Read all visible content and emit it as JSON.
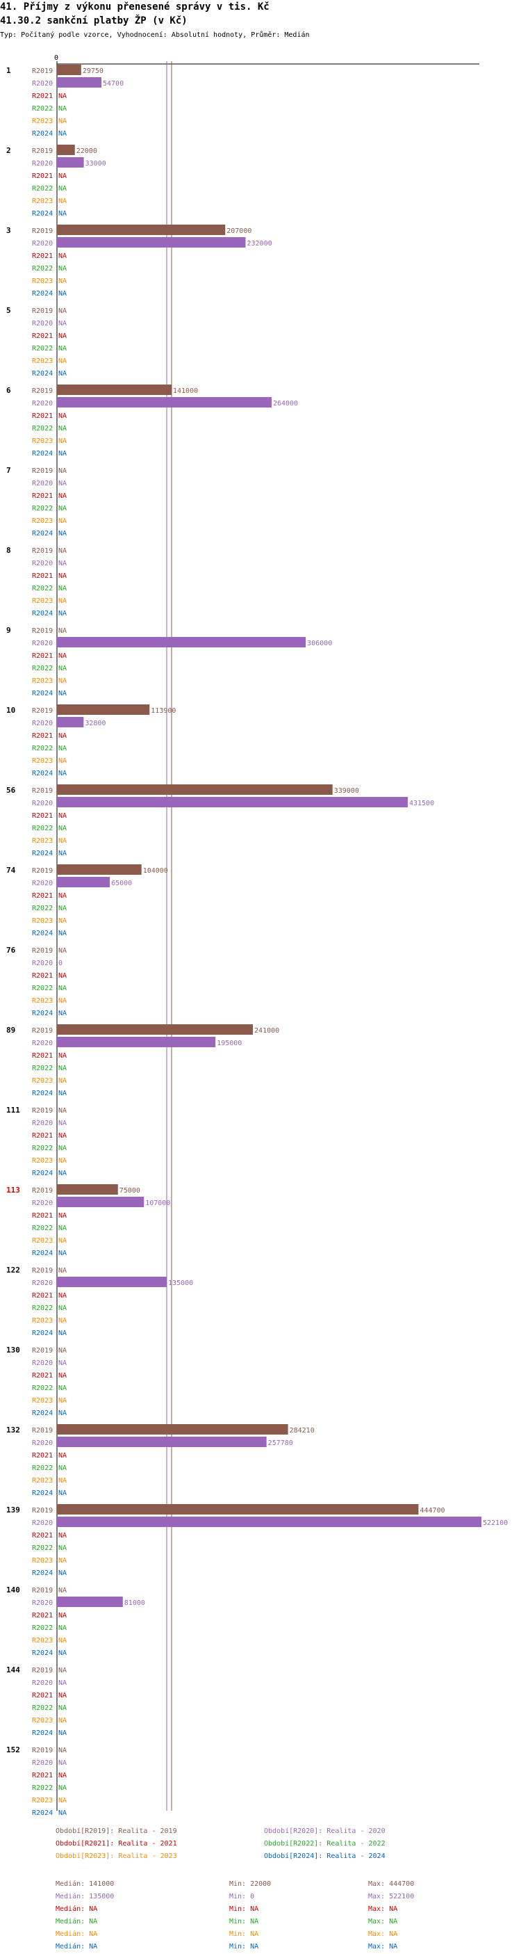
{
  "header": {
    "title": "41. Příjmy z výkonu přenesené správy v tis. Kč",
    "subtitle_title": "41.30.2 sankční platby ŽP (v Kč)",
    "meta": "Typ: Počítaný podle vzorce, Vyhodnocení: Absolutní hodnoty, Průměr: Medián"
  },
  "colors": {
    "R2019": "#8B5A4A",
    "R2020": "#9966BB",
    "R2021": "#CC0000",
    "R2022": "#22AA22",
    "R2023": "#FF8800",
    "R2024": "#0066CC",
    "highlight_group": "#DD0000",
    "median_line_2019": "#8B5A4A",
    "median_line_2020": "#9966BB"
  },
  "chart_data": {
    "type": "bar",
    "orientation": "horizontal",
    "x_axis": {
      "min": 0,
      "max": 522100,
      "tick_label": "0"
    },
    "series_names": [
      "R2019",
      "R2020",
      "R2021",
      "R2022",
      "R2023",
      "R2024"
    ],
    "median_lines": {
      "R2019": 141000,
      "R2020": 135000
    },
    "groups": [
      {
        "label": "1",
        "highlight": false,
        "values": [
          29750,
          54700,
          null,
          null,
          null,
          null
        ],
        "labels": [
          "29750",
          "54700",
          "NA",
          "NA",
          "NA",
          "NA"
        ]
      },
      {
        "label": "2",
        "highlight": false,
        "values": [
          22000,
          33000,
          null,
          null,
          null,
          null
        ],
        "labels": [
          "22000",
          "33000",
          "NA",
          "NA",
          "NA",
          "NA"
        ]
      },
      {
        "label": "3",
        "highlight": false,
        "values": [
          207000,
          232000,
          null,
          null,
          null,
          null
        ],
        "labels": [
          "207000",
          "232000",
          "NA",
          "NA",
          "NA",
          "NA"
        ]
      },
      {
        "label": "5",
        "highlight": false,
        "values": [
          null,
          null,
          null,
          null,
          null,
          null
        ],
        "labels": [
          "NA",
          "NA",
          "NA",
          "NA",
          "NA",
          "NA"
        ]
      },
      {
        "label": "6",
        "highlight": false,
        "values": [
          141000,
          264000,
          null,
          null,
          null,
          null
        ],
        "labels": [
          "141000",
          "264000",
          "NA",
          "NA",
          "NA",
          "NA"
        ]
      },
      {
        "label": "7",
        "highlight": false,
        "values": [
          null,
          null,
          null,
          null,
          null,
          null
        ],
        "labels": [
          "NA",
          "NA",
          "NA",
          "NA",
          "NA",
          "NA"
        ]
      },
      {
        "label": "8",
        "highlight": false,
        "values": [
          null,
          null,
          null,
          null,
          null,
          null
        ],
        "labels": [
          "NA",
          "NA",
          "NA",
          "NA",
          "NA",
          "NA"
        ]
      },
      {
        "label": "9",
        "highlight": false,
        "values": [
          null,
          306000,
          null,
          null,
          null,
          null
        ],
        "labels": [
          "NA",
          "306000",
          "NA",
          "NA",
          "NA",
          "NA"
        ]
      },
      {
        "label": "10",
        "highlight": false,
        "values": [
          113900,
          32800,
          null,
          null,
          null,
          null
        ],
        "labels": [
          "113900",
          "32800",
          "NA",
          "NA",
          "NA",
          "NA"
        ]
      },
      {
        "label": "56",
        "highlight": false,
        "values": [
          339000,
          431500,
          null,
          null,
          null,
          null
        ],
        "labels": [
          "339000",
          "431500",
          "NA",
          "NA",
          "NA",
          "NA"
        ]
      },
      {
        "label": "74",
        "highlight": false,
        "values": [
          104000,
          65000,
          null,
          null,
          null,
          null
        ],
        "labels": [
          "104000",
          "65000",
          "NA",
          "NA",
          "NA",
          "NA"
        ]
      },
      {
        "label": "76",
        "highlight": false,
        "values": [
          null,
          0,
          null,
          null,
          null,
          null
        ],
        "labels": [
          "NA",
          "0",
          "NA",
          "NA",
          "NA",
          "NA"
        ]
      },
      {
        "label": "89",
        "highlight": false,
        "values": [
          241000,
          195000,
          null,
          null,
          null,
          null
        ],
        "labels": [
          "241000",
          "195000",
          "NA",
          "NA",
          "NA",
          "NA"
        ]
      },
      {
        "label": "111",
        "highlight": false,
        "values": [
          null,
          null,
          null,
          null,
          null,
          null
        ],
        "labels": [
          "NA",
          "NA",
          "NA",
          "NA",
          "NA",
          "NA"
        ]
      },
      {
        "label": "113",
        "highlight": true,
        "values": [
          75000,
          107000,
          null,
          null,
          null,
          null
        ],
        "labels": [
          "75000",
          "107000",
          "NA",
          "NA",
          "NA",
          "NA"
        ]
      },
      {
        "label": "122",
        "highlight": false,
        "values": [
          null,
          135000,
          null,
          null,
          null,
          null
        ],
        "labels": [
          "NA",
          "135000",
          "NA",
          "NA",
          "NA",
          "NA"
        ]
      },
      {
        "label": "130",
        "highlight": false,
        "values": [
          null,
          null,
          null,
          null,
          null,
          null
        ],
        "labels": [
          "NA",
          "NA",
          "NA",
          "NA",
          "NA",
          "NA"
        ]
      },
      {
        "label": "132",
        "highlight": false,
        "values": [
          284210,
          257780,
          null,
          null,
          null,
          null
        ],
        "labels": [
          "284210",
          "257780",
          "NA",
          "NA",
          "NA",
          "NA"
        ]
      },
      {
        "label": "139",
        "highlight": false,
        "values": [
          444700,
          522100,
          null,
          null,
          null,
          null
        ],
        "labels": [
          "444700",
          "522100",
          "NA",
          "NA",
          "NA",
          "NA"
        ]
      },
      {
        "label": "140",
        "highlight": false,
        "values": [
          null,
          81000,
          null,
          null,
          null,
          null
        ],
        "labels": [
          "NA",
          "81000",
          "NA",
          "NA",
          "NA",
          "NA"
        ]
      },
      {
        "label": "144",
        "highlight": false,
        "values": [
          null,
          null,
          null,
          null,
          null,
          null
        ],
        "labels": [
          "NA",
          "NA",
          "NA",
          "NA",
          "NA",
          "NA"
        ]
      },
      {
        "label": "152",
        "highlight": false,
        "values": [
          null,
          null,
          null,
          null,
          null,
          null
        ],
        "labels": [
          "NA",
          "NA",
          "NA",
          "NA",
          "NA",
          "NA"
        ]
      }
    ],
    "legend": [
      {
        "series": "R2019",
        "text": "Období[R2019]: Realita - 2019"
      },
      {
        "series": "R2020",
        "text": "Období[R2020]: Realita - 2020"
      },
      {
        "series": "R2021",
        "text": "Období[R2021]: Realita - 2021"
      },
      {
        "series": "R2022",
        "text": "Období[R2022]: Realita - 2022"
      },
      {
        "series": "R2023",
        "text": "Období[R2023]: Realita - 2023"
      },
      {
        "series": "R2024",
        "text": "Období[R2024]: Realita - 2024"
      }
    ],
    "stats": [
      {
        "series": "R2019",
        "median": "Medián: 141000",
        "min": "Min: 22000",
        "max": "Max: 444700"
      },
      {
        "series": "R2020",
        "median": "Medián: 135000",
        "min": "Min: 0",
        "max": "Max: 522100"
      },
      {
        "series": "R2021",
        "median": "Medián: NA",
        "min": "Min: NA",
        "max": "Max: NA"
      },
      {
        "series": "R2022",
        "median": "Medián: NA",
        "min": "Min: NA",
        "max": "Max: NA"
      },
      {
        "series": "R2023",
        "median": "Medián: NA",
        "min": "Min: NA",
        "max": "Max: NA"
      },
      {
        "series": "R2024",
        "median": "Medián: NA",
        "min": "Min: NA",
        "max": "Max: NA"
      }
    ]
  }
}
